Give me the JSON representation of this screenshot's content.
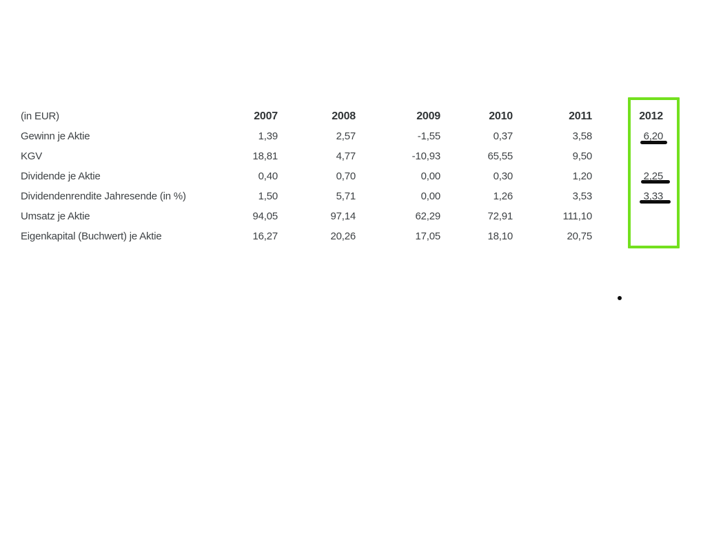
{
  "page": {
    "background_color": "#ffffff",
    "text_color": "#3e4245"
  },
  "table": {
    "unit_label": "(in EUR)",
    "columns": [
      "2007",
      "2008",
      "2009",
      "2010",
      "2011",
      "2012"
    ],
    "rows": [
      {
        "label": "Gewinn je Aktie",
        "values": [
          "1,39",
          "2,57",
          "-1,55",
          "0,37",
          "3,58",
          "6,20"
        ]
      },
      {
        "label": "KGV",
        "values": [
          "18,81",
          "4,77",
          "-10,93",
          "65,55",
          "9,50",
          ""
        ]
      },
      {
        "label": "Dividende je Aktie",
        "values": [
          "0,40",
          "0,70",
          "0,00",
          "0,30",
          "1,20",
          "2,25"
        ]
      },
      {
        "label": "Dividendenrendite Jahresende (in %)",
        "values": [
          "1,50",
          "5,71",
          "0,00",
          "1,26",
          "3,53",
          "3,33"
        ]
      },
      {
        "label": "Umsatz je Aktie",
        "values": [
          "94,05",
          "97,14",
          "62,29",
          "72,91",
          "111,10",
          ""
        ]
      },
      {
        "label": "Eigenkapital (Buchwert) je Aktie",
        "values": [
          "16,27",
          "20,26",
          "17,05",
          "18,10",
          "20,75",
          ""
        ]
      }
    ]
  },
  "annotations": {
    "highlighted_column": "2012",
    "highlight_box_color": "#73e01e",
    "marker_color": "#0d0d0d",
    "underlined_values": [
      {
        "row": "Gewinn je Aktie",
        "value": "6,20"
      },
      {
        "row": "Dividende je Aktie",
        "value": "2,25"
      },
      {
        "row": "Dividendenrendite Jahresende (in %)",
        "value": "3,33"
      }
    ]
  }
}
